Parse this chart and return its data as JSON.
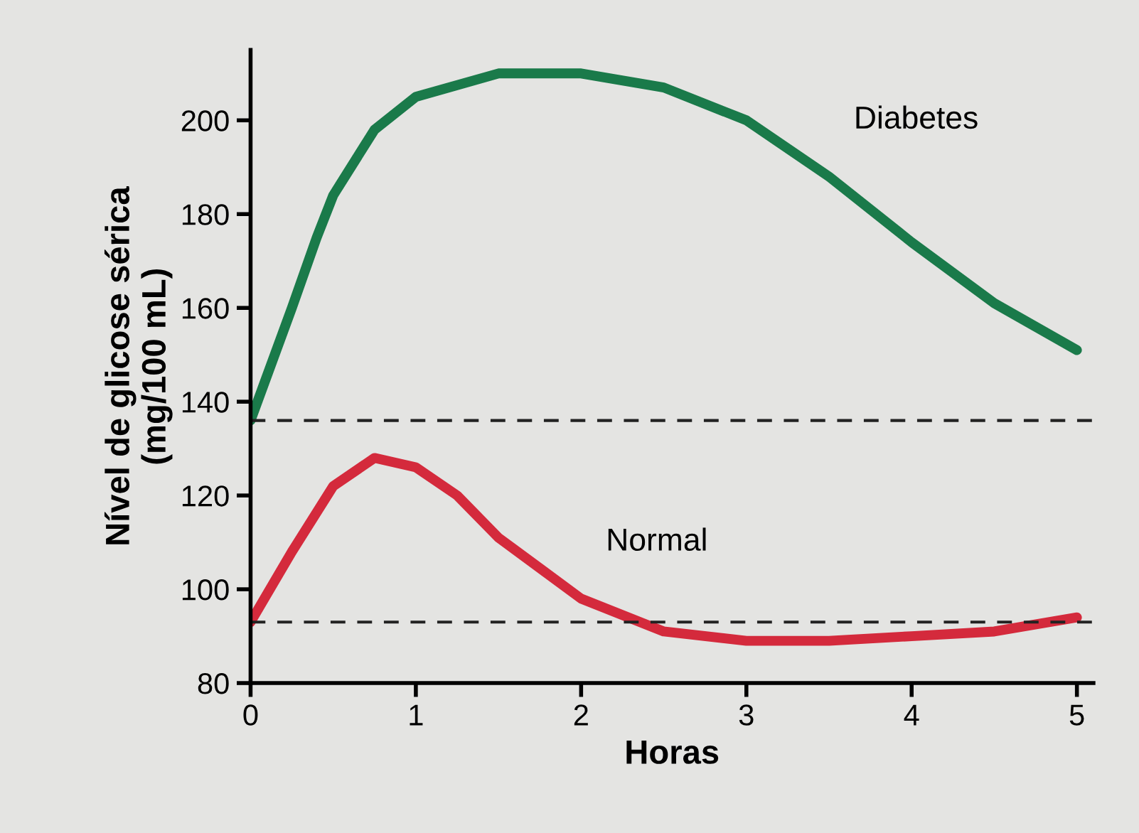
{
  "chart_data": {
    "type": "line",
    "xlabel": "Horas",
    "ylabel": "Nível de glicose sérica\n(mg/100 mL)",
    "x": [
      0,
      0.25,
      0.4,
      0.5,
      0.75,
      1,
      1.5,
      2,
      2.5,
      3,
      3.5,
      4,
      4.5,
      5
    ],
    "series": [
      {
        "name": "Diabetes",
        "color": "#1a7a4a",
        "values": [
          136,
          160,
          175,
          184,
          198,
          205,
          210,
          210,
          207,
          200,
          188,
          174,
          161,
          151
        ]
      },
      {
        "name": "Normal",
        "color": "#d42a3c",
        "x": [
          0,
          0.25,
          0.5,
          0.75,
          1,
          1.25,
          1.5,
          2,
          2.5,
          3,
          3.5,
          4,
          4.5,
          5
        ],
        "values": [
          93,
          108,
          122,
          128,
          126,
          120,
          111,
          98,
          91,
          89,
          89,
          90,
          91,
          94
        ]
      }
    ],
    "ref_lines": [
      {
        "axis": "y",
        "value": 136,
        "line_style": "dashed",
        "color": "#222222"
      },
      {
        "axis": "y",
        "value": 93,
        "line_style": "dashed",
        "color": "#222222"
      }
    ],
    "xlim": [
      0,
      5.1
    ],
    "ylim": [
      80,
      215
    ],
    "xticks": [
      0,
      1,
      2,
      3,
      4,
      5
    ],
    "yticks": [
      80,
      100,
      120,
      140,
      160,
      180,
      200
    ],
    "grid": false,
    "legend": false,
    "marker": "none",
    "line_style": "solid"
  }
}
